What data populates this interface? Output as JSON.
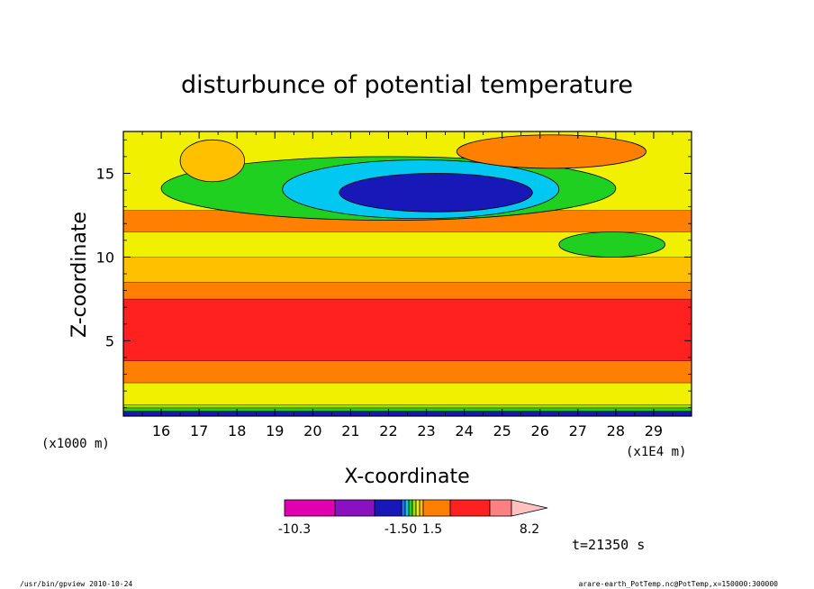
{
  "chart_data": {
    "type": "heatmap",
    "title": "disturbunce of potential temperature",
    "xlabel": "X-coordinate",
    "ylabel": "Z-coordinate",
    "x_unit": "(x1E4 m)",
    "y_unit": "(x1000 m)",
    "xlim": [
      15,
      30
    ],
    "ylim": [
      0.5,
      17.5
    ],
    "x_ticks": [
      "16",
      "17",
      "18",
      "19",
      "20",
      "21",
      "22",
      "23",
      "24",
      "25",
      "26",
      "27",
      "28",
      "29"
    ],
    "y_ticks": [
      "5",
      "10",
      "15"
    ],
    "colorbar": {
      "tick_labels": [
        "-10.3",
        "-1.50",
        "1.5",
        "8.2"
      ],
      "colors": [
        "#e000b0",
        "#8a10c0",
        "#1818b8",
        "#2a6ef0",
        "#00c8f0",
        "#20d020",
        "#a0e000",
        "#f0f000",
        "#ffc000",
        "#ff8000",
        "#ff2020",
        "#ff8080",
        "#ffc0c0"
      ]
    },
    "time_label": "t=21350 s",
    "footer_left": "/usr/bin/gpview  2010-10-24",
    "footer_right": "arare-earth_PotTemp.nc@PotTemp,x=150000:300000",
    "layers": [
      {
        "z": [
          0.5,
          0.8
        ],
        "value": -2.5,
        "color": "#1818b8"
      },
      {
        "z": [
          0.8,
          1.0
        ],
        "value": -0.8,
        "color": "#20d020"
      },
      {
        "z": [
          1.0,
          1.2
        ],
        "value": 0.3,
        "color": "#a0e000"
      },
      {
        "z": [
          1.2,
          2.5
        ],
        "value": 0.8,
        "color": "#f0f000"
      },
      {
        "z": [
          2.5,
          3.8
        ],
        "value": 2.5,
        "color": "#ff8000"
      },
      {
        "z": [
          3.8,
          7.5
        ],
        "value": 5.0,
        "color": "#ff2020"
      },
      {
        "z": [
          7.5,
          8.5
        ],
        "value": 2.5,
        "color": "#ff8000"
      },
      {
        "z": [
          8.5,
          10.0
        ],
        "value": 1.5,
        "color": "#ffc000"
      },
      {
        "z": [
          10.0,
          11.5
        ],
        "value": 0.5,
        "color": "#f0f000"
      },
      {
        "z": [
          11.5,
          12.8
        ],
        "value": 2.0,
        "color": "#ff8000"
      },
      {
        "z": [
          12.8,
          17.5
        ],
        "value": 0.5,
        "color": "#f0f000"
      }
    ],
    "features": [
      {
        "name": "cold-core",
        "x": [
          20.7,
          25.8
        ],
        "z": [
          12.7,
          15.0
        ],
        "value": -3.0,
        "color": "#1818b8"
      },
      {
        "name": "cold-outer",
        "x": [
          19.2,
          26.5
        ],
        "z": [
          12.3,
          15.8
        ],
        "value": -1.0,
        "color": "#00c8f0"
      },
      {
        "name": "cool-band",
        "x": [
          16.0,
          28.0
        ],
        "z": [
          12.2,
          16.0
        ],
        "value": -0.5,
        "color": "#20d020"
      },
      {
        "name": "warm-cell-upper-right",
        "x": [
          23.8,
          28.8
        ],
        "z": [
          15.3,
          17.3
        ],
        "value": 2.0,
        "color": "#ff8000"
      },
      {
        "name": "warm-cell-upper-left",
        "x": [
          16.5,
          18.2
        ],
        "z": [
          14.5,
          17.0
        ],
        "value": 1.5,
        "color": "#ffc000"
      },
      {
        "name": "cool-cell-right",
        "x": [
          26.5,
          29.3
        ],
        "z": [
          10.0,
          11.5
        ],
        "value": -0.5,
        "color": "#20d020"
      }
    ]
  }
}
